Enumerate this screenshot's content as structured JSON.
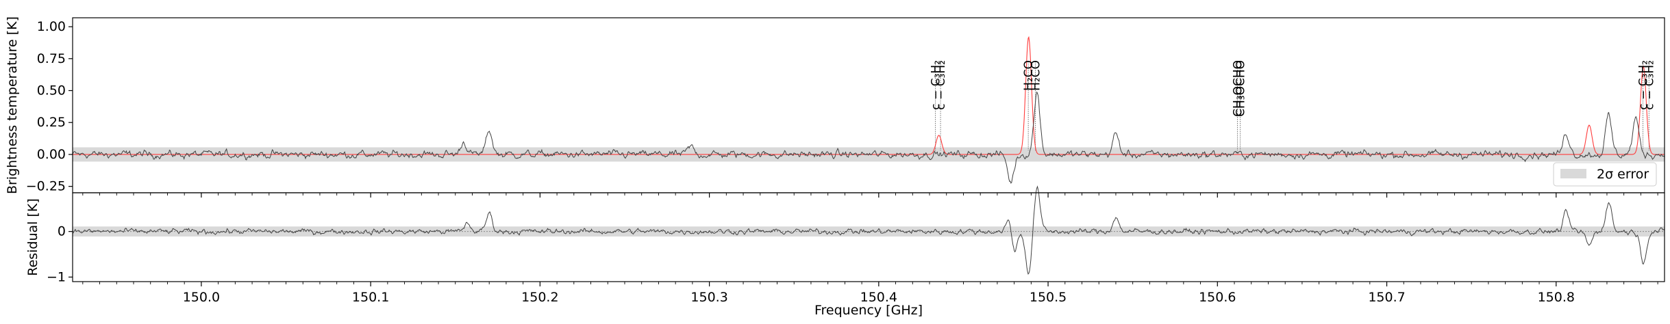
{
  "chart_data": [
    {
      "panel": "top",
      "type": "line",
      "ylabel": "Brightness temperature [K]",
      "xlim": [
        149.924,
        150.864
      ],
      "ylim": [
        -0.3,
        1.07
      ],
      "yticks": [
        -0.25,
        0.0,
        0.25,
        0.5,
        0.75,
        1.0
      ],
      "ytick_labels": [
        "−0.25",
        "0.00",
        "0.25",
        "0.50",
        "0.75",
        "1.00"
      ],
      "error_band": [
        -0.056,
        0.056
      ],
      "legend": {
        "label": "2σ error",
        "placement": "lower-right"
      },
      "series": [
        {
          "role": "observed",
          "color": "#404040",
          "noise_rms": 0.02,
          "lines": [
            {
              "x": 150.155,
              "y": 0.1
            },
            {
              "x": 150.17,
              "y": 0.19
            },
            {
              "x": 150.289,
              "y": 0.06
            },
            {
              "x": 150.478,
              "y": -0.22
            },
            {
              "x": 150.4935,
              "y": 0.48
            },
            {
              "x": 150.54,
              "y": 0.16
            },
            {
              "x": 150.806,
              "y": 0.17
            },
            {
              "x": 150.831,
              "y": 0.3
            },
            {
              "x": 150.847,
              "y": 0.28
            }
          ]
        },
        {
          "role": "model",
          "color": "#ff3b3b",
          "lines": [
            {
              "x": 150.4355,
              "y": 0.15
            },
            {
              "x": 150.4885,
              "y": 0.92
            },
            {
              "x": 150.8195,
              "y": 0.23
            },
            {
              "x": 150.8515,
              "y": 0.69
            }
          ]
        }
      ],
      "annotations": [
        {
          "x": 150.4335,
          "label": "c − C₃H₂"
        },
        {
          "x": 150.4365,
          "label": "c − C₃H₂"
        },
        {
          "x": 150.4883,
          "label": "H₂CO"
        },
        {
          "x": 150.4925,
          "label": "H₂CO"
        },
        {
          "x": 150.6118,
          "label": "CH₃OCHO"
        },
        {
          "x": 150.6135,
          "label": "CH₃OCHO"
        },
        {
          "x": 150.8513,
          "label": "c − C₃H₂"
        },
        {
          "x": 150.8548,
          "label": "c − C₃H₂"
        }
      ]
    },
    {
      "panel": "bottom",
      "type": "line",
      "xlabel": "Frequency [GHz]",
      "ylabel": "Residual [K]",
      "xlim": [
        149.924,
        150.864
      ],
      "ylim": [
        -1.1,
        0.85
      ],
      "yticks": [
        -1,
        0
      ],
      "ytick_labels": [
        "−1",
        "0"
      ],
      "xticks": [
        150.0,
        150.1,
        150.2,
        150.3,
        150.4,
        150.5,
        150.6,
        150.7,
        150.8
      ],
      "xtick_labels": [
        "150.0",
        "150.1",
        "150.2",
        "150.3",
        "150.4",
        "150.5",
        "150.6",
        "150.7",
        "150.8"
      ],
      "error_band": [
        -0.11,
        0.11
      ],
      "series": [
        {
          "role": "residual",
          "color": "#404040",
          "noise_rms": 0.04,
          "lines": [
            {
              "x": 150.157,
              "y": 0.18
            },
            {
              "x": 150.17,
              "y": 0.4
            },
            {
              "x": 150.477,
              "y": 0.3
            },
            {
              "x": 150.48,
              "y": -0.45
            },
            {
              "x": 150.4885,
              "y": -0.9
            },
            {
              "x": 150.4935,
              "y": 0.95
            },
            {
              "x": 150.54,
              "y": 0.3
            },
            {
              "x": 150.806,
              "y": 0.4
            },
            {
              "x": 150.8195,
              "y": -0.3
            },
            {
              "x": 150.831,
              "y": 0.65
            },
            {
              "x": 150.8515,
              "y": -0.65
            }
          ]
        }
      ]
    }
  ]
}
